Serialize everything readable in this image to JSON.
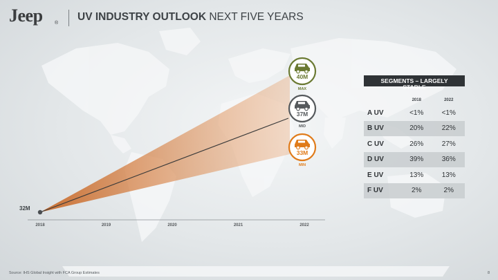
{
  "header": {
    "brand": "Jeep",
    "brand_mark": "®",
    "title_bold": "UV INDUSTRY OUTLOOK",
    "title_rest": " NEXT FIVE YEARS"
  },
  "chart_data": {
    "type": "line",
    "x": [
      "2018",
      "2019",
      "2020",
      "2021",
      "2022"
    ],
    "start": {
      "year": "2018",
      "value": 32,
      "label": "32M"
    },
    "end_points": [
      {
        "name": "MAX",
        "value": 40,
        "label": "40M",
        "color": "#6b7a33"
      },
      {
        "name": "MID",
        "value": 37,
        "label": "37M",
        "color": "#55595c"
      },
      {
        "name": "MIN",
        "value": 33,
        "label": "33M",
        "color": "#e07b1a"
      }
    ],
    "ylim": [
      32,
      40
    ],
    "fan_color": "#d9915a",
    "line_color": "#3a3a3a"
  },
  "segments": {
    "title_line1": "SEGMENTS – LARGELY",
    "title_line2": "STABLE",
    "columns": [
      "",
      "2018",
      "2022"
    ],
    "rows": [
      {
        "label": "A UV",
        "y2018": "<1%",
        "y2022": "<1%"
      },
      {
        "label": "B UV",
        "y2018": "20%",
        "y2022": "22%"
      },
      {
        "label": "C UV",
        "y2018": "26%",
        "y2022": "27%"
      },
      {
        "label": "D UV",
        "y2018": "39%",
        "y2022": "36%"
      },
      {
        "label": "E UV",
        "y2018": "13%",
        "y2022": "13%"
      },
      {
        "label": "F UV",
        "y2018": "2%",
        "y2022": "2%"
      }
    ]
  },
  "footer": {
    "source": "Source: IHS Global Insight with FCA Group Estimates",
    "page": "8"
  },
  "icons": {
    "vehicle": "suv-icon"
  }
}
